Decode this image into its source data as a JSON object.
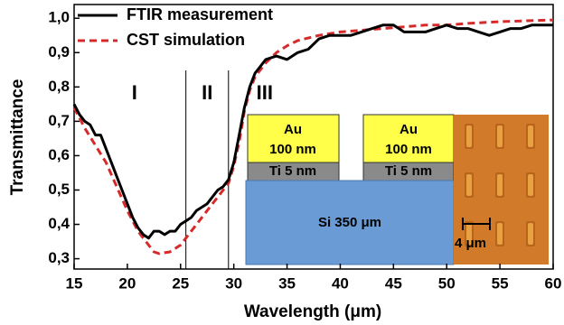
{
  "chart_data": {
    "type": "line",
    "xlabel": "Wavelength (μm)",
    "ylabel": "Transmittance",
    "xlim": [
      15,
      60
    ],
    "ylim": [
      0.27,
      1.04
    ],
    "xticks": [
      15,
      20,
      25,
      30,
      35,
      40,
      45,
      50,
      55,
      60
    ],
    "yticks": [
      {
        "value": 0.3,
        "label": "0,3"
      },
      {
        "value": 0.4,
        "label": "0,4"
      },
      {
        "value": 0.5,
        "label": "0,5"
      },
      {
        "value": 0.6,
        "label": "0,6"
      },
      {
        "value": 0.7,
        "label": "0,7"
      },
      {
        "value": 0.8,
        "label": "0,8"
      },
      {
        "value": 0.9,
        "label": "0,9"
      },
      {
        "value": 1.0,
        "label": "1,0"
      }
    ],
    "legend": "upper left",
    "series": [
      {
        "name": "FTIR measurement",
        "color": "#000000",
        "dashed": false,
        "x": [
          15,
          15.5,
          16,
          16.5,
          17,
          17.5,
          18,
          18.5,
          19,
          19.5,
          20,
          20.5,
          21,
          21.5,
          22,
          22.5,
          23,
          23.5,
          24,
          24.5,
          25,
          25.5,
          26,
          26.5,
          27,
          27.5,
          28,
          28.5,
          29,
          29.5,
          30,
          30.5,
          31,
          31.5,
          32,
          32.5,
          33,
          34,
          35,
          36,
          37,
          38,
          39,
          40,
          41,
          42,
          43,
          44,
          45,
          46,
          47,
          48,
          49,
          50,
          51,
          52,
          53,
          54,
          55,
          56,
          57,
          58,
          59,
          60
        ],
        "values": [
          0.75,
          0.72,
          0.7,
          0.69,
          0.66,
          0.66,
          0.62,
          0.58,
          0.54,
          0.5,
          0.46,
          0.42,
          0.39,
          0.37,
          0.36,
          0.38,
          0.38,
          0.37,
          0.38,
          0.38,
          0.4,
          0.41,
          0.42,
          0.44,
          0.45,
          0.46,
          0.48,
          0.5,
          0.51,
          0.53,
          0.58,
          0.66,
          0.74,
          0.8,
          0.84,
          0.86,
          0.88,
          0.89,
          0.88,
          0.9,
          0.91,
          0.94,
          0.95,
          0.95,
          0.95,
          0.96,
          0.97,
          0.98,
          0.98,
          0.96,
          0.96,
          0.96,
          0.97,
          0.98,
          0.97,
          0.97,
          0.96,
          0.95,
          0.96,
          0.97,
          0.97,
          0.98,
          0.98,
          0.98
        ]
      },
      {
        "name": "CST simulation",
        "color": "#d62a2a",
        "dashed": true,
        "x": [
          15,
          16,
          17,
          18,
          19,
          20,
          21,
          22,
          22.5,
          23,
          24,
          25,
          26,
          27,
          28,
          29,
          29.5,
          30,
          30.5,
          31,
          31.5,
          32,
          33,
          34,
          35,
          36,
          38,
          40,
          42,
          44,
          46,
          48,
          50,
          52,
          55,
          60
        ],
        "values": [
          0.74,
          0.68,
          0.63,
          0.58,
          0.51,
          0.44,
          0.38,
          0.34,
          0.32,
          0.315,
          0.32,
          0.34,
          0.38,
          0.42,
          0.46,
          0.5,
          0.52,
          0.57,
          0.64,
          0.73,
          0.79,
          0.83,
          0.87,
          0.9,
          0.92,
          0.935,
          0.95,
          0.96,
          0.965,
          0.97,
          0.975,
          0.98,
          0.98,
          0.985,
          0.99,
          0.995
        ]
      }
    ],
    "dividers": [
      25.5,
      29.5
    ],
    "regions": [
      "I",
      "II",
      "III"
    ],
    "inset": {
      "metal": "Au",
      "metal_thickness": "100 nm",
      "adhesion": "Ti 5 nm",
      "substrate": "Si 350 μm",
      "scale_bar": "4 μm"
    }
  }
}
